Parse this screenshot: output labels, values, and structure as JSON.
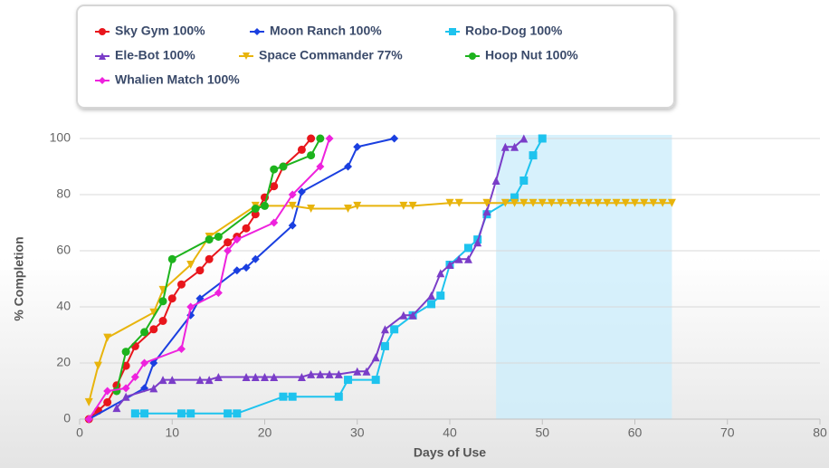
{
  "chart_data": {
    "type": "line",
    "x_label": "Days of Use",
    "y_label": "% Completion",
    "xlim": [
      0,
      80
    ],
    "ylim": [
      0,
      100
    ],
    "xticks": [
      0,
      10,
      20,
      30,
      40,
      50,
      60,
      70,
      80
    ],
    "yticks": [
      0,
      20,
      40,
      60,
      80,
      100
    ],
    "grid": true,
    "legend": "top",
    "plot_bands": [
      {
        "from": 45,
        "to": 64,
        "color": "#cdeefb"
      }
    ],
    "series": [
      {
        "name": "Sky Gym 100%",
        "color": "#e8161c",
        "marker": "circle",
        "x": [
          1,
          2,
          3,
          4,
          5,
          6,
          8,
          9,
          10,
          11,
          13,
          14,
          16,
          17,
          18,
          19,
          20,
          21,
          22,
          24,
          25
        ],
        "values": [
          0,
          3,
          6,
          12,
          19,
          26,
          32,
          35,
          43,
          48,
          53,
          57,
          63,
          65,
          68,
          73,
          79,
          83,
          90,
          96,
          100
        ]
      },
      {
        "name": "Moon Ranch 100%",
        "color": "#1a3fe0",
        "marker": "diamond",
        "x": [
          1,
          7,
          8,
          12,
          13,
          17,
          18,
          19,
          23,
          24,
          29,
          30,
          34
        ],
        "values": [
          0,
          11,
          20,
          37,
          43,
          53,
          54,
          57,
          69,
          81,
          90,
          97,
          100
        ]
      },
      {
        "name": "Robo-Dog 100%",
        "color": "#1ec3ee",
        "marker": "square",
        "x": [
          6,
          7,
          11,
          12,
          16,
          17,
          22,
          23,
          28,
          29,
          32,
          33,
          34,
          36,
          38,
          39,
          40,
          42,
          43,
          44,
          47,
          48,
          49,
          50
        ],
        "values": [
          2,
          2,
          2,
          2,
          2,
          2,
          8,
          8,
          8,
          14,
          14,
          26,
          32,
          37,
          41,
          44,
          55,
          61,
          64,
          73,
          79,
          85,
          94,
          100
        ]
      },
      {
        "name": "Ele-Bot 100%",
        "color": "#7a3dc8",
        "marker": "triangle",
        "x": [
          4,
          5,
          8,
          9,
          10,
          13,
          14,
          15,
          18,
          19,
          20,
          21,
          24,
          25,
          26,
          27,
          28,
          30,
          31,
          32,
          33,
          35,
          36,
          38,
          39,
          40,
          41,
          42,
          43,
          44,
          45,
          46,
          47,
          48
        ],
        "values": [
          4,
          8,
          11,
          14,
          14,
          14,
          14,
          15,
          15,
          15,
          15,
          15,
          15,
          16,
          16,
          16,
          16,
          17,
          17,
          22,
          32,
          37,
          37,
          44,
          52,
          55,
          57,
          57,
          63,
          74,
          85,
          97,
          97,
          100
        ]
      },
      {
        "name": "Space Commander 77%",
        "color": "#e8b40c",
        "marker": "triangle-down",
        "x": [
          1,
          2,
          3,
          8,
          9,
          12,
          14,
          19,
          23,
          25,
          29,
          30,
          35,
          36,
          40,
          41,
          44,
          46,
          47,
          48,
          49,
          50,
          51,
          52,
          53,
          54,
          55,
          56,
          57,
          58,
          59,
          60,
          61,
          62,
          63,
          64
        ],
        "values": [
          6,
          19,
          29,
          38,
          46,
          55,
          65,
          76,
          76,
          75,
          75,
          76,
          76,
          76,
          77,
          77,
          77,
          77,
          77,
          77,
          77,
          77,
          77,
          77,
          77,
          77,
          77,
          77,
          77,
          77,
          77,
          77,
          77,
          77,
          77,
          77
        ]
      },
      {
        "name": "Hoop Nut 100%",
        "color": "#1db31d",
        "marker": "circle",
        "x": [
          4,
          5,
          7,
          9,
          10,
          14,
          15,
          19,
          20,
          21,
          22,
          25,
          26
        ],
        "values": [
          10,
          24,
          31,
          42,
          57,
          64,
          65,
          75,
          76,
          89,
          90,
          94,
          100
        ]
      },
      {
        "name": "Whalien Match 100%",
        "color": "#ee22dd",
        "marker": "diamond",
        "x": [
          1,
          3,
          5,
          6,
          7,
          11,
          12,
          15,
          16,
          17,
          21,
          23,
          26,
          27
        ],
        "values": [
          0,
          10,
          11,
          15,
          20,
          25,
          40,
          45,
          60,
          64,
          70,
          80,
          90,
          100
        ]
      }
    ]
  }
}
